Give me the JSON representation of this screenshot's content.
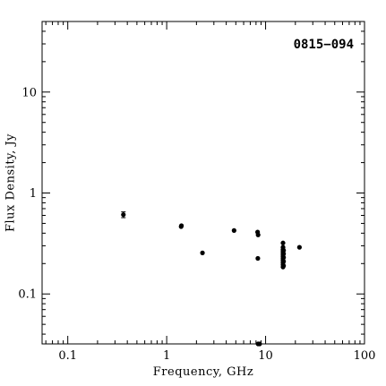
{
  "chart_data": {
    "type": "scatter",
    "title": "0815−094",
    "xlabel": "Frequency, GHz",
    "ylabel": "Flux Density, Jy",
    "xscale": "log",
    "yscale": "log",
    "xlim": [
      0.055,
      100
    ],
    "ylim": [
      0.032,
      50
    ],
    "x_ticks": [
      0.1,
      1,
      10,
      100
    ],
    "x_tick_labels": [
      "0.1",
      "1",
      "10",
      "100"
    ],
    "y_ticks": [
      0.1,
      1,
      10
    ],
    "y_tick_labels": [
      "0.1",
      "1",
      "10"
    ],
    "grid": false,
    "legend": "none",
    "marker_color": "#000000",
    "points": [
      {
        "x": 0.365,
        "y": 0.61,
        "yerr": 0.04
      },
      {
        "x": 1.4,
        "y": 0.465
      },
      {
        "x": 1.41,
        "y": 0.475
      },
      {
        "x": 2.3,
        "y": 0.255
      },
      {
        "x": 4.8,
        "y": 0.425
      },
      {
        "x": 8.3,
        "y": 0.41
      },
      {
        "x": 8.4,
        "y": 0.385
      },
      {
        "x": 8.35,
        "y": 0.225
      },
      {
        "x": 8.4,
        "y": 0.032
      },
      {
        "x": 8.7,
        "y": 0.032
      },
      {
        "x": 15.0,
        "y": 0.32
      },
      {
        "x": 15.0,
        "y": 0.29
      },
      {
        "x": 15.0,
        "y": 0.275
      },
      {
        "x": 15.0,
        "y": 0.265
      },
      {
        "x": 15.0,
        "y": 0.255
      },
      {
        "x": 15.0,
        "y": 0.245
      },
      {
        "x": 15.0,
        "y": 0.235
      },
      {
        "x": 15.0,
        "y": 0.225
      },
      {
        "x": 15.0,
        "y": 0.215
      },
      {
        "x": 15.0,
        "y": 0.205
      },
      {
        "x": 15.0,
        "y": 0.195
      },
      {
        "x": 15.0,
        "y": 0.185
      },
      {
        "x": 15.2,
        "y": 0.27
      },
      {
        "x": 15.2,
        "y": 0.25
      },
      {
        "x": 15.2,
        "y": 0.23
      },
      {
        "x": 15.2,
        "y": 0.21
      },
      {
        "x": 15.2,
        "y": 0.19
      },
      {
        "x": 22.0,
        "y": 0.29
      }
    ]
  }
}
